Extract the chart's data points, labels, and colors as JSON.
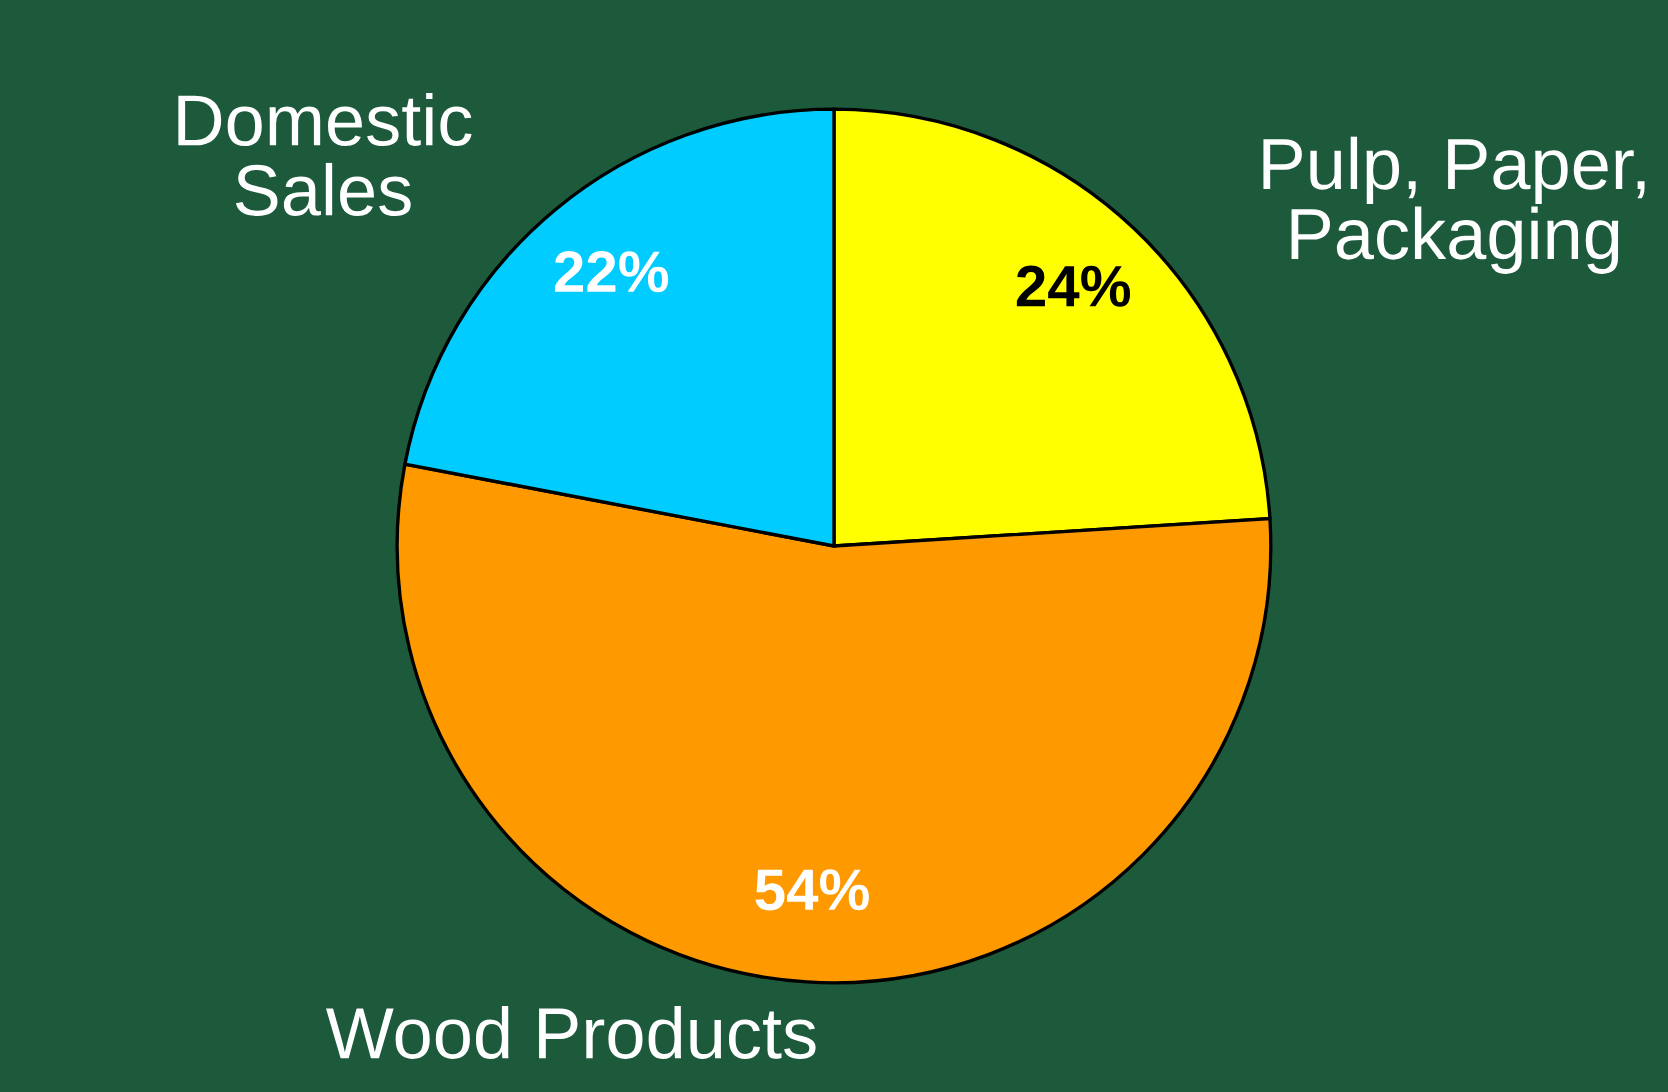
{
  "chart_data": {
    "type": "pie",
    "categories": [
      "Pulp, Paper,\nPackaging",
      "Wood Products",
      "Domestic\nSales"
    ],
    "values": [
      24,
      54,
      22
    ],
    "colors": [
      "#ffff00",
      "#ff9900",
      "#00ccff"
    ],
    "value_labels": [
      "24%",
      "54%",
      "22%"
    ]
  }
}
